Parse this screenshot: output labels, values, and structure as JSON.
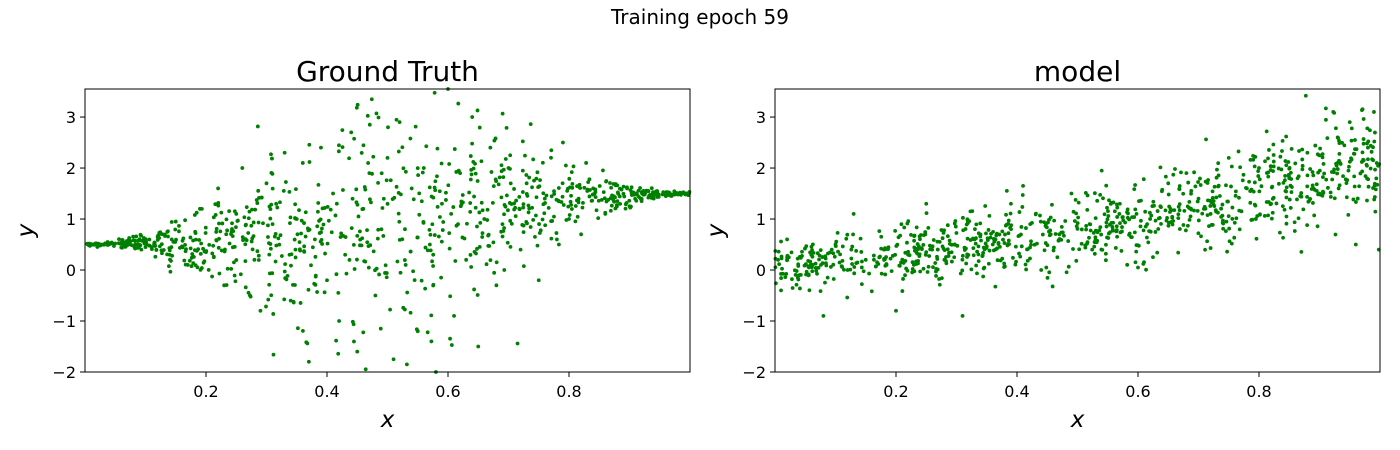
{
  "figure": {
    "suptitle": "Training epoch 59"
  },
  "chart_data": [
    {
      "type": "scatter",
      "title": "Ground Truth",
      "xlabel": "x",
      "ylabel": "y",
      "xlim": [
        0,
        1
      ],
      "ylim": [
        -2,
        3.55
      ],
      "xticks": [
        0.2,
        0.4,
        0.6,
        0.8
      ],
      "yticks": [
        -2,
        -1,
        0,
        1,
        2,
        3
      ],
      "xtick_labels": [
        "0.2",
        "0.4",
        "0.6",
        "0.8"
      ],
      "ytick_labels": [
        "−2",
        "−1",
        "0",
        "1",
        "2",
        "3"
      ],
      "marker_color": "#008000",
      "n_points": 1000,
      "description": "Mean follows a smooth curve from y≈0.5 at x=0 to y≈1.5 at x=1; noise spread grows from near 0 at the edges to about ±2 near x=0.5.",
      "points": [
        [
          0.01,
          0.51
        ],
        [
          0.03,
          0.5
        ],
        [
          0.05,
          0.52
        ],
        [
          0.07,
          0.55
        ],
        [
          0.09,
          0.58
        ],
        [
          0.1,
          0.45
        ],
        [
          0.12,
          0.65
        ],
        [
          0.14,
          0.3
        ],
        [
          0.15,
          0.95
        ],
        [
          0.17,
          0.1
        ],
        [
          0.19,
          1.2
        ],
        [
          0.2,
          0.35
        ],
        [
          0.22,
          1.6
        ],
        [
          0.23,
          -0.3
        ],
        [
          0.25,
          1.1
        ],
        [
          0.26,
          2.0
        ],
        [
          0.28,
          0.2
        ],
        [
          0.29,
          -0.8
        ],
        [
          0.3,
          1.7
        ],
        [
          0.31,
          0.9
        ],
        [
          0.33,
          2.3
        ],
        [
          0.34,
          -0.6
        ],
        [
          0.35,
          1.0
        ],
        [
          0.36,
          2.1
        ],
        [
          0.37,
          -1.8
        ],
        [
          0.38,
          0.6
        ],
        [
          0.39,
          2.4
        ],
        [
          0.4,
          -0.2
        ],
        [
          0.41,
          1.5
        ],
        [
          0.42,
          -1.0
        ],
        [
          0.43,
          0.3
        ],
        [
          0.44,
          2.7
        ],
        [
          0.45,
          -1.6
        ],
        [
          0.46,
          1.2
        ],
        [
          0.47,
          1.9
        ],
        [
          0.48,
          -0.5
        ],
        [
          0.49,
          0.8
        ],
        [
          0.5,
          2.2
        ],
        [
          0.51,
          -1.75
        ],
        [
          0.52,
          2.9
        ],
        [
          0.53,
          0.1
        ],
        [
          0.54,
          1.6
        ],
        [
          0.55,
          -1.2
        ],
        [
          0.56,
          2.0
        ],
        [
          0.57,
          0.5
        ],
        [
          0.58,
          -2.0
        ],
        [
          0.59,
          1.3
        ],
        [
          0.6,
          3.55
        ],
        [
          0.61,
          -0.9
        ],
        [
          0.62,
          1.9
        ],
        [
          0.63,
          0.2
        ],
        [
          0.64,
          3.0
        ],
        [
          0.65,
          -1.5
        ],
        [
          0.66,
          1.0
        ],
        [
          0.67,
          2.4
        ],
        [
          0.68,
          -0.3
        ],
        [
          0.69,
          0.9
        ],
        [
          0.7,
          2.0
        ],
        [
          0.72,
          0.4
        ],
        [
          0.73,
          1.7
        ],
        [
          0.75,
          -0.2
        ],
        [
          0.76,
          1.4
        ],
        [
          0.78,
          0.6
        ],
        [
          0.79,
          2.5
        ],
        [
          0.8,
          1.0
        ],
        [
          0.82,
          0.7
        ],
        [
          0.84,
          1.6
        ],
        [
          0.86,
          1.1
        ],
        [
          0.88,
          1.35
        ],
        [
          0.9,
          1.25
        ],
        [
          0.92,
          1.35
        ],
        [
          0.94,
          1.4
        ],
        [
          0.96,
          1.45
        ],
        [
          0.98,
          1.48
        ],
        [
          0.995,
          1.5
        ]
      ]
    },
    {
      "type": "scatter",
      "title": "model",
      "xlabel": "x",
      "ylabel": "y",
      "xlim": [
        0,
        1
      ],
      "ylim": [
        -2,
        3.55
      ],
      "xticks": [
        0.2,
        0.4,
        0.6,
        0.8
      ],
      "yticks": [
        -2,
        -1,
        0,
        1,
        2,
        3
      ],
      "xtick_labels": [
        "0.2",
        "0.4",
        "0.6",
        "0.8"
      ],
      "ytick_labels": [
        "−2",
        "−1",
        "0",
        "1",
        "2",
        "3"
      ],
      "marker_color": "#008000",
      "n_points": 1000,
      "description": "Roughly linear increasing trend from y≈0.1 at x=0 to y≈2.2 at x=1 with homoscedastic-to-growing noise.",
      "points": [
        [
          0.005,
          0.2
        ],
        [
          0.01,
          -0.4
        ],
        [
          0.02,
          0.6
        ],
        [
          0.04,
          -0.1
        ],
        [
          0.06,
          0.3
        ],
        [
          0.08,
          -0.9
        ],
        [
          0.1,
          0.5
        ],
        [
          0.12,
          0.0
        ],
        [
          0.13,
          1.1
        ],
        [
          0.15,
          0.2
        ],
        [
          0.18,
          0.4
        ],
        [
          0.2,
          -0.8
        ],
        [
          0.22,
          0.3
        ],
        [
          0.25,
          1.3
        ],
        [
          0.28,
          0.2
        ],
        [
          0.31,
          -0.9
        ],
        [
          0.33,
          0.6
        ],
        [
          0.36,
          0.5
        ],
        [
          0.39,
          1.3
        ],
        [
          0.41,
          1.65
        ],
        [
          0.44,
          0.0
        ],
        [
          0.47,
          0.7
        ],
        [
          0.49,
          1.5
        ],
        [
          0.52,
          0.9
        ],
        [
          0.54,
          1.95
        ],
        [
          0.57,
          1.3
        ],
        [
          0.6,
          0.05
        ],
        [
          0.62,
          1.0
        ],
        [
          0.65,
          1.7
        ],
        [
          0.68,
          1.9
        ],
        [
          0.7,
          1.4
        ],
        [
          0.72,
          1.1
        ],
        [
          0.75,
          2.2
        ],
        [
          0.78,
          1.6
        ],
        [
          0.8,
          2.0
        ],
        [
          0.82,
          1.3
        ],
        [
          0.85,
          1.8
        ],
        [
          0.88,
          2.3
        ],
        [
          0.9,
          1.5
        ],
        [
          0.93,
          2.6
        ],
        [
          0.95,
          2.9
        ],
        [
          0.96,
          0.5
        ],
        [
          0.98,
          2.4
        ],
        [
          0.99,
          3.1
        ],
        [
          0.998,
          0.4
        ]
      ]
    }
  ]
}
